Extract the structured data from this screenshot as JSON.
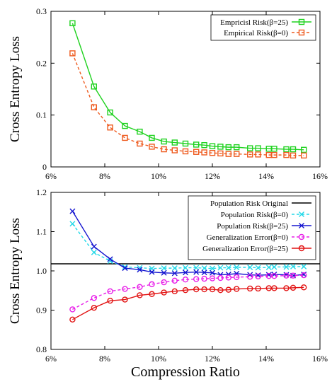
{
  "colors": {
    "green": "#1fd21f",
    "orange": "#ee5a1e",
    "cyan": "#22d8e8",
    "blue": "#1616d0",
    "magenta": "#e81ee8",
    "red": "#e21212",
    "black": "#000000"
  },
  "xlabel_shared": "Compression Ratio",
  "chart_data": [
    {
      "type": "line",
      "ylabel": "Cross Entropy Loss",
      "xlabel": "",
      "xlim": [
        6,
        16
      ],
      "ylim": [
        0,
        0.3
      ],
      "xticks": [
        "6%",
        "8%",
        "10%",
        "12%",
        "14%",
        "16%"
      ],
      "yticks": [
        "0",
        "0.1",
        "0.2",
        "0.3"
      ],
      "grid": false,
      "legend_placement": "top-right",
      "x": [
        6.8,
        7.6,
        8.2,
        8.75,
        9.3,
        9.75,
        10.2,
        10.6,
        11.0,
        11.4,
        11.7,
        12.0,
        12.3,
        12.6,
        12.9,
        13.4,
        13.7,
        14.1,
        14.3,
        14.75,
        15.0,
        15.4
      ],
      "series": [
        {
          "name": "Empricisl Risk(β=25)",
          "color": "green",
          "dash": "solid",
          "marker": "square",
          "values": [
            0.277,
            0.155,
            0.105,
            0.079,
            0.068,
            0.056,
            0.049,
            0.047,
            0.045,
            0.043,
            0.042,
            0.04,
            0.039,
            0.038,
            0.038,
            0.036,
            0.036,
            0.035,
            0.035,
            0.034,
            0.034,
            0.033
          ]
        },
        {
          "name": "Empirical Risk(β=0)",
          "color": "orange",
          "dash": "dashed",
          "marker": "square",
          "values": [
            0.219,
            0.115,
            0.076,
            0.056,
            0.045,
            0.039,
            0.034,
            0.032,
            0.03,
            0.029,
            0.028,
            0.027,
            0.026,
            0.025,
            0.025,
            0.024,
            0.024,
            0.023,
            0.023,
            0.023,
            0.022,
            0.022
          ]
        }
      ]
    },
    {
      "type": "line",
      "ylabel": "Cross Entropy Loss",
      "xlabel": "Compression Ratio",
      "xlim": [
        6,
        16
      ],
      "ylim": [
        0.8,
        1.2
      ],
      "xticks": [
        "6%",
        "8%",
        "10%",
        "12%",
        "14%",
        "16%"
      ],
      "yticks": [
        "0.8",
        "0.9",
        "1.0",
        "1.1",
        "1.2"
      ],
      "grid": false,
      "legend_placement": "top-right",
      "x": [
        6.8,
        7.6,
        8.2,
        8.75,
        9.3,
        9.75,
        10.2,
        10.6,
        11.0,
        11.4,
        11.7,
        12.0,
        12.3,
        12.6,
        12.9,
        13.4,
        13.7,
        14.1,
        14.3,
        14.75,
        15.0,
        15.4
      ],
      "series": [
        {
          "name": "Population Risk Original",
          "color": "black",
          "dash": "solid",
          "marker": "none",
          "constant": 1.018
        },
        {
          "name": "Population Risk(β=0)",
          "color": "cyan",
          "dash": "dashed",
          "marker": "x",
          "values": [
            1.12,
            1.047,
            1.025,
            1.01,
            1.008,
            1.006,
            1.007,
            1.007,
            1.008,
            1.008,
            1.007,
            1.006,
            1.008,
            1.008,
            1.009,
            1.009,
            1.008,
            1.009,
            1.01,
            1.01,
            1.011,
            1.011
          ]
        },
        {
          "name": "Population Risk(β=25)",
          "color": "blue",
          "dash": "solid",
          "marker": "x",
          "values": [
            1.152,
            1.062,
            1.03,
            1.007,
            1.003,
            0.997,
            0.995,
            0.994,
            0.996,
            0.997,
            0.996,
            0.995,
            0.99,
            0.991,
            0.993,
            0.99,
            0.989,
            0.99,
            0.991,
            0.99,
            0.988,
            0.991
          ]
        },
        {
          "name": "Generalization Error(β=0)",
          "color": "magenta",
          "dash": "dashed",
          "marker": "circle",
          "values": [
            0.902,
            0.931,
            0.948,
            0.954,
            0.959,
            0.966,
            0.971,
            0.975,
            0.978,
            0.979,
            0.98,
            0.981,
            0.982,
            0.983,
            0.984,
            0.985,
            0.986,
            0.987,
            0.987,
            0.988,
            0.988,
            0.989
          ]
        },
        {
          "name": "Generalization Error(β=25)",
          "color": "red",
          "dash": "solid",
          "marker": "circle",
          "values": [
            0.876,
            0.906,
            0.924,
            0.927,
            0.938,
            0.941,
            0.945,
            0.948,
            0.951,
            0.953,
            0.953,
            0.953,
            0.951,
            0.952,
            0.954,
            0.955,
            0.955,
            0.956,
            0.956,
            0.956,
            0.957,
            0.958
          ]
        }
      ]
    }
  ]
}
